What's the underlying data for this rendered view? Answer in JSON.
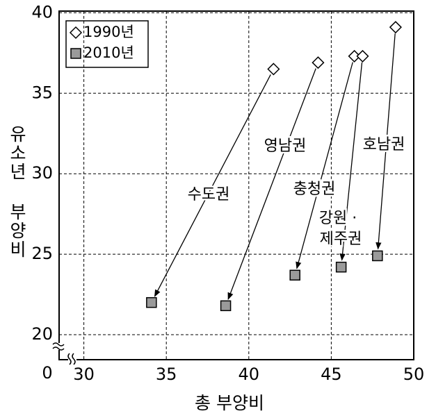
{
  "chart_data": {
    "type": "scatter",
    "x_label": "총 부양비",
    "y_label": "유소년 부양비",
    "origin_label": "0",
    "xlim": [
      28.5,
      50
    ],
    "ylim": [
      18.45,
      40.1
    ],
    "xticks": [
      30,
      35,
      40,
      45,
      50
    ],
    "yticks": [
      20,
      25,
      30,
      35,
      40
    ],
    "grid": true,
    "regions": [
      [
        "수도권"
      ],
      [
        "영남권"
      ],
      [
        "충청권"
      ],
      [
        "강원 ·",
        "제주권"
      ],
      [
        "호남권"
      ]
    ],
    "series": [
      {
        "name": "1990년",
        "marker": "diamond",
        "color": "#ffffff",
        "x": [
          41.5,
          44.2,
          46.4,
          46.9,
          48.9
        ],
        "y": [
          36.5,
          36.9,
          37.3,
          37.3,
          39.1
        ]
      },
      {
        "name": "2010년",
        "marker": "square",
        "color": "#9a9a9a",
        "x": [
          34.1,
          38.6,
          42.8,
          45.6,
          47.8
        ],
        "y": [
          22.0,
          21.8,
          23.7,
          24.2,
          24.9
        ]
      }
    ]
  }
}
